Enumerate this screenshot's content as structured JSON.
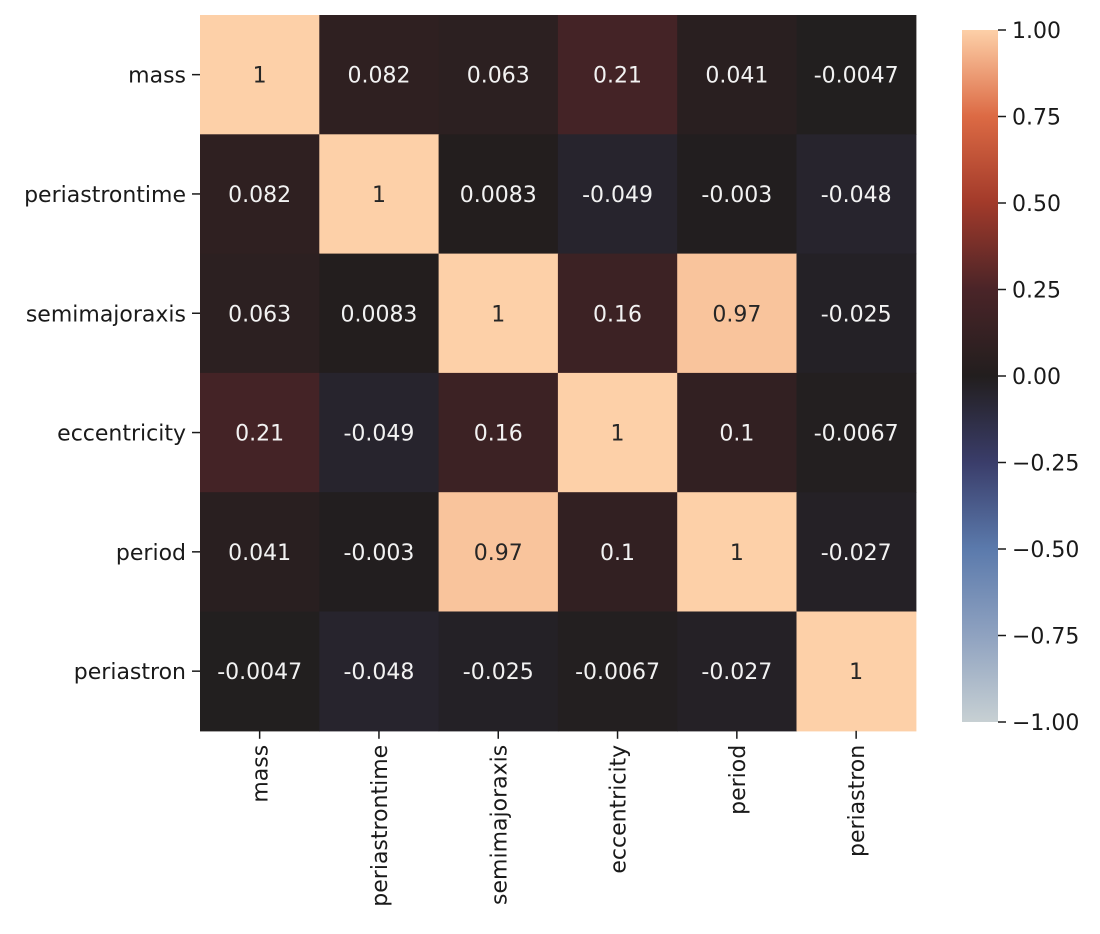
{
  "chart_data": {
    "type": "heatmap",
    "title": "",
    "xlabel": "",
    "ylabel": "",
    "variables": [
      "mass",
      "periastrontime",
      "semimajoraxis",
      "eccentricity",
      "period",
      "periastron"
    ],
    "matrix": [
      [
        1,
        0.082,
        0.063,
        0.21,
        0.041,
        -0.0047
      ],
      [
        0.082,
        1,
        0.0083,
        -0.049,
        -0.003,
        -0.048
      ],
      [
        0.063,
        0.0083,
        1,
        0.16,
        0.97,
        -0.025
      ],
      [
        0.21,
        -0.049,
        0.16,
        1,
        0.1,
        -0.0067
      ],
      [
        0.041,
        -0.003,
        0.97,
        0.1,
        1,
        -0.027
      ],
      [
        -0.0047,
        -0.048,
        -0.025,
        -0.0067,
        -0.027,
        1
      ]
    ],
    "annotations": [
      [
        "1",
        "0.082",
        "0.063",
        "0.21",
        "0.041",
        "-0.0047"
      ],
      [
        "0.082",
        "1",
        "0.0083",
        "-0.049",
        "-0.003",
        "-0.048"
      ],
      [
        "0.063",
        "0.0083",
        "1",
        "0.16",
        "0.97",
        "-0.025"
      ],
      [
        "0.21",
        "-0.049",
        "0.16",
        "1",
        "0.1",
        "-0.0067"
      ],
      [
        "0.041",
        "-0.003",
        "0.97",
        "0.1",
        "1",
        "-0.027"
      ],
      [
        "-0.0047",
        "-0.048",
        "-0.025",
        "-0.0067",
        "-0.027",
        "1"
      ]
    ],
    "colorbar": {
      "vmin": -1,
      "vmax": 1,
      "ticks": [
        1.0,
        0.75,
        0.5,
        0.25,
        0.0,
        -0.25,
        -0.5,
        -0.75,
        -1.0
      ],
      "tick_labels": [
        "1.00",
        "0.75",
        "0.50",
        "0.25",
        "0.00",
        "−0.25",
        "−0.50",
        "−0.75",
        "−1.00"
      ],
      "placement": "right",
      "colors": {
        "stop_neg1": "#c7d0d3",
        "stop_neg075": "#8fa2c0",
        "stop_neg05": "#5b7aac",
        "stop_neg025": "#3a3d6a",
        "stop_0": "#221e1e",
        "stop_025": "#4a2428",
        "stop_05": "#a23a2a",
        "stop_075": "#dc6a44",
        "stop_1": "#fdd0a8"
      }
    }
  }
}
